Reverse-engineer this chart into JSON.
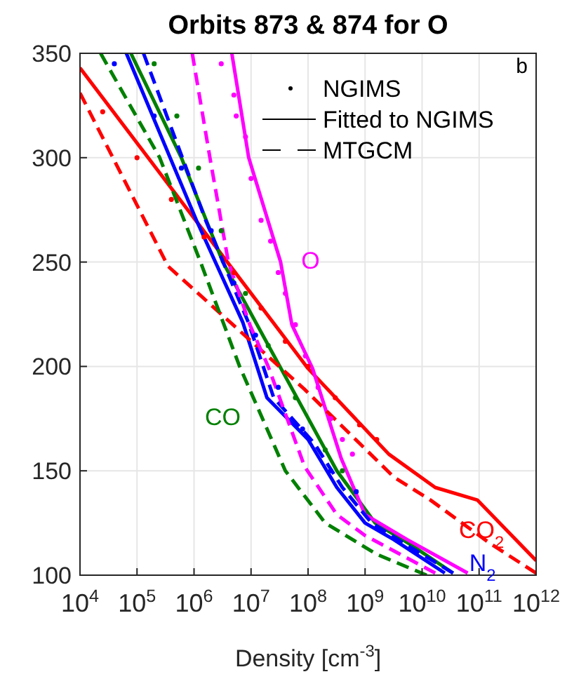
{
  "chart_data": {
    "type": "line",
    "title": "Orbits 873 & 874 for O",
    "xlabel": "Density [cm$^{-3}$]",
    "annotations": [
      "b",
      "NGIMS",
      "Fitted to NGIMS",
      "MTGCM"
    ],
    "log": "x",
    "grid": true,
    "xlim": [
      10000.0,
      1000000000000.0
    ],
    "ylim": [
      100,
      350
    ],
    "xticks": [
      {
        "value": 10000.0,
        "label": "10$^{4}$"
      },
      {
        "value": 100000.0,
        "label": "10$^{5}$"
      },
      {
        "value": 1000000.0,
        "label": "10$^{6}$"
      },
      {
        "value": 10000000.0,
        "label": "10$^{7}$"
      },
      {
        "value": 100000000.0,
        "label": "10$^{8}$"
      },
      {
        "value": 1000000000.0,
        "label": "10$^{9}$"
      },
      {
        "value": 10000000000.0,
        "label": "10$^{10}$"
      },
      {
        "value": 100000000000.0,
        "label": "10$^{11}$"
      },
      {
        "value": 1000000000000.0,
        "label": "10$^{12}$"
      }
    ],
    "yticks": [
      100,
      150,
      200,
      250,
      300,
      350
    ],
    "series": [
      {
        "type": "scatter",
        "marker": "circle",
        "color": "#ff0000",
        "x": [
          25000.0,
          100000.0,
          400000.0,
          1500000.0,
          5000000.0,
          15000000.0,
          40000000.0,
          100000000.0,
          300000000.0,
          800000000.0,
          1600000000.0
        ],
        "values": [
          322,
          300,
          280,
          262,
          245,
          228,
          212,
          200,
          185,
          172,
          165
        ]
      },
      {
        "line_style": "solid",
        "name": "CO$_{2}$",
        "color": "#ff0000",
        "x": [
          10000.0,
          1900000.0,
          100000000.0,
          2600000000.0,
          17000000000.0,
          93000000000.0,
          1000000000000.0
        ],
        "values": [
          343,
          261,
          199,
          158,
          142,
          136,
          107
        ]
      },
      {
        "type": "line",
        "line_style": "dashed",
        "color": "#ff0000",
        "x": [
          10000.0,
          350000.0,
          87000000.0,
          3200000000.0,
          14000000000.0,
          160000000000.0,
          1000000000000.0
        ],
        "values": [
          331,
          248,
          189,
          147,
          136,
          115,
          101
        ]
      },
      {
        "type": "scatter",
        "marker": "circle",
        "color": "#0000ff",
        "x": [
          40000.0,
          200000.0,
          600000.0,
          2000000.0,
          5000000.0,
          12000000.0,
          30000000.0,
          80000000.0,
          250000000.0,
          700000000.0
        ],
        "values": [
          345,
          320,
          295,
          265,
          240,
          215,
          190,
          170,
          150,
          140
        ]
      },
      {
        "line_style": "solid",
        "name": "N$_{2}$",
        "color": "#0000ff",
        "x": [
          65000.0,
          1100000.0,
          7200000.0,
          19000000.0,
          100000000.0,
          320000000.0,
          1000000000.0,
          3200000000.0,
          25000000000.0
        ],
        "values": [
          350,
          270,
          221,
          185,
          165,
          142,
          125,
          117,
          101
        ]
      },
      {
        "type": "line",
        "line_style": "dashed",
        "color": "#0000ff",
        "x": [
          130000.0,
          1600000.0,
          9000000.0,
          25000000.0,
          130000000.0,
          400000000.0,
          1300000000.0,
          5000000000.0,
          35000000000.0
        ],
        "values": [
          350,
          270,
          221,
          185,
          163,
          142,
          125,
          115,
          101
        ]
      },
      {
        "type": "scatter",
        "marker": "circle",
        "color": "#008000",
        "x": [
          200000.0,
          500000.0,
          1200000.0,
          3000000.0,
          8000000.0,
          20000000.0,
          60000000.0,
          200000000.0,
          400000000.0
        ],
        "values": [
          345,
          320,
          295,
          265,
          235,
          210,
          185,
          160,
          150
        ]
      },
      {
        "line_style": "solid",
        "name": "CO",
        "color": "#008000",
        "x": [
          78000.0,
          600000.0,
          3200000.0,
          32000000.0,
          320000000.0,
          1500000000.0,
          6000000000.0,
          35000000000.0
        ],
        "values": [
          350,
          300,
          250,
          200,
          150,
          125,
          115,
          101
        ]
      },
      {
        "type": "line",
        "line_style": "dashed",
        "color": "#008000",
        "x": [
          23000.0,
          250000.0,
          1300000.0,
          6300000.0,
          40000000.0,
          200000000.0,
          1600000000.0,
          12000000000.0
        ],
        "values": [
          350,
          300,
          250,
          200,
          150,
          125,
          110,
          100
        ]
      },
      {
        "type": "scatter",
        "marker": "circle",
        "color": "#ff00ff",
        "x": [
          3000000.0,
          5000000.0,
          5500000.0,
          8000000.0,
          10000000.0,
          15000000.0,
          22000000.0,
          30000000.0,
          40000000.0,
          60000000.0,
          90000000.0,
          150000000.0,
          250000000.0,
          400000000.0,
          600000000.0
        ],
        "values": [
          345,
          330,
          320,
          310,
          290,
          270,
          260,
          245,
          235,
          220,
          205,
          190,
          175,
          165,
          158
        ]
      },
      {
        "line_style": "solid",
        "name": "O",
        "color": "#ff00ff",
        "x": [
          4600000.0,
          9100000.0,
          33000000.0,
          52000000.0,
          120000000.0,
          380000000.0,
          1000000000.0,
          5500000000.0,
          63000000000.0
        ],
        "values": [
          350,
          300,
          250,
          220,
          199,
          156,
          129,
          117,
          101
        ]
      },
      {
        "type": "line",
        "line_style": "dashed",
        "color": "#ff00ff",
        "x": [
          930000.0,
          1900000.0,
          4000000.0,
          9500000.0,
          20000000.0,
          87000000.0,
          320000000.0,
          1000000000.0,
          17000000000.0
        ],
        "values": [
          350,
          300,
          250,
          220,
          200,
          152,
          129,
          119,
          101
        ]
      }
    ]
  }
}
